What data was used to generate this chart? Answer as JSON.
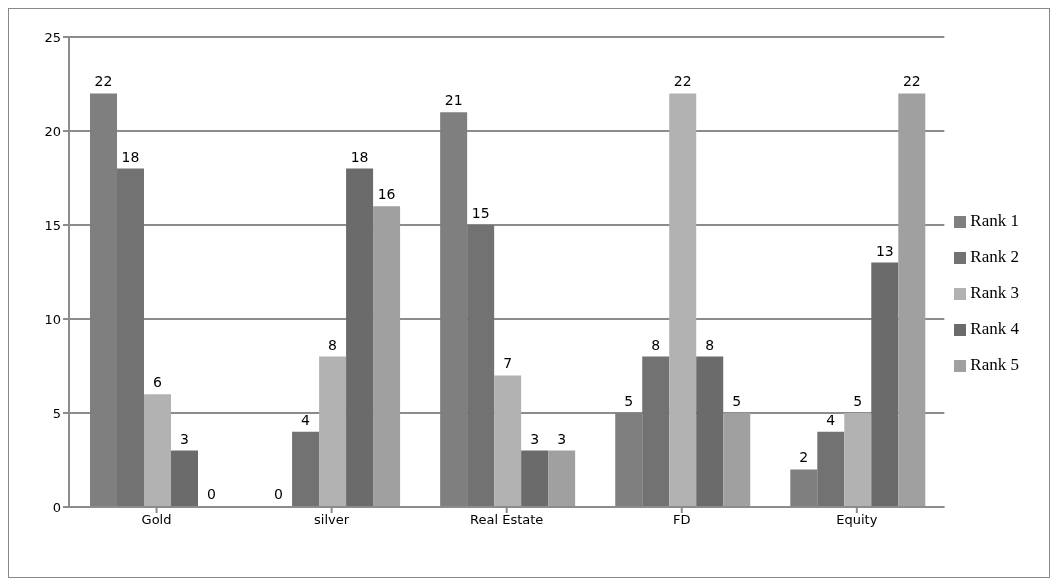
{
  "chart_data": {
    "type": "bar",
    "categories": [
      "Gold",
      "silver",
      "Real Estate",
      "FD",
      "Equity"
    ],
    "series": [
      {
        "name": "Rank 1",
        "color": "#7f7f7f",
        "values": [
          22,
          0,
          21,
          5,
          2
        ]
      },
      {
        "name": "Rank 2",
        "color": "#727272",
        "values": [
          18,
          4,
          15,
          8,
          4
        ]
      },
      {
        "name": "Rank 3",
        "color": "#b2b2b2",
        "values": [
          6,
          8,
          7,
          22,
          5
        ]
      },
      {
        "name": "Rank 4",
        "color": "#6b6b6b",
        "values": [
          3,
          18,
          3,
          8,
          13
        ]
      },
      {
        "name": "Rank 5",
        "color": "#a0a0a0",
        "values": [
          0,
          16,
          3,
          5,
          22
        ]
      }
    ],
    "ylim": [
      0,
      25
    ],
    "yticks": [
      0,
      5,
      10,
      15,
      20,
      25
    ],
    "grid": "y",
    "legend": "right",
    "data_labels": true
  }
}
